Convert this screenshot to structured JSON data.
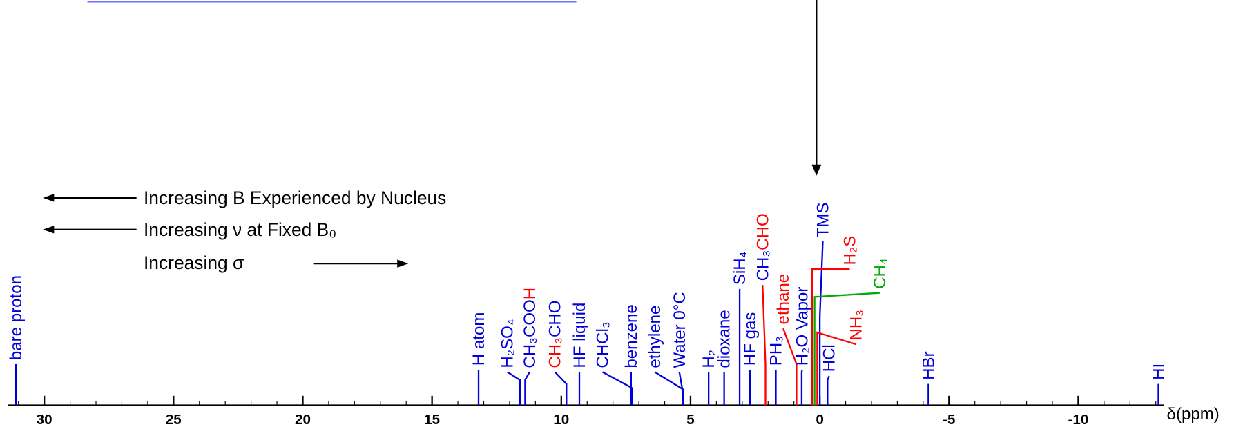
{
  "chart_data": {
    "type": "stem",
    "x_label": "δ(ppm)",
    "annotations": [
      "Increasing B Experienced by Nucleus",
      "Increasing ν at Fixed B₀",
      "Increasing σ"
    ],
    "xlim": [
      31.4,
      -13.3
    ],
    "xticks": [
      30,
      25,
      20,
      15,
      10,
      5,
      0,
      -5,
      -10
    ],
    "xminorticks": [
      31,
      30,
      29,
      28,
      27,
      26,
      25,
      24,
      23,
      22,
      21,
      20,
      19,
      18,
      17,
      16,
      15,
      14,
      13,
      12,
      11,
      10,
      9,
      8,
      7,
      6,
      5,
      4,
      3,
      2,
      1,
      0,
      -1,
      -2,
      -3,
      -4,
      -5,
      -6,
      -7,
      -8,
      -9,
      -10,
      -11,
      -12,
      -13
    ],
    "peaks": [
      {
        "x": 31.1,
        "color": "#0000dd",
        "parts": [
          {
            "text": "bare proton",
            "color": "#0000dd"
          }
        ]
      },
      {
        "x": 13.2,
        "color": "#0000dd",
        "parts": [
          {
            "text": "H atom",
            "color": "#0000dd"
          }
        ]
      },
      {
        "x": 11.6,
        "color": "#0000dd",
        "parts": [
          {
            "text": "H₂SO₄",
            "color": "#0000dd"
          }
        ]
      },
      {
        "x": 11.4,
        "color": "#0000dd",
        "parts": [
          {
            "text": "CH₃COO",
            "color": "#0000dd"
          },
          {
            "text": "H",
            "color": "#ff0000"
          }
        ]
      },
      {
        "x": 9.8,
        "color": "#0000dd",
        "parts": [
          {
            "text": "CH₃",
            "color": "#ff0000"
          },
          {
            "text": "CHO",
            "color": "#0000dd"
          }
        ]
      },
      {
        "x": 9.3,
        "color": "#0000dd",
        "parts": [
          {
            "text": "HF  liquid",
            "color": "#0000dd"
          }
        ]
      },
      {
        "x": 7.27,
        "color": "#0000dd",
        "parts": [
          {
            "text": "CHCl₃",
            "color": "#0000dd"
          }
        ]
      },
      {
        "x": 7.3,
        "color": "#0000dd",
        "parts": [
          {
            "text": "benzene",
            "color": "#0000dd"
          }
        ]
      },
      {
        "x": 5.28,
        "color": "#0000dd",
        "parts": [
          {
            "text": "ethylene",
            "color": "#0000dd"
          }
        ]
      },
      {
        "x": 5.3,
        "color": "#0000dd",
        "parts": [
          {
            "text": "Water 0°C",
            "color": "#0000dd"
          }
        ]
      },
      {
        "x": 4.3,
        "color": "#0000dd",
        "parts": [
          {
            "text": "H₂",
            "color": "#0000dd"
          }
        ]
      },
      {
        "x": 3.7,
        "color": "#0000dd",
        "parts": [
          {
            "text": "dioxane",
            "color": "#0000dd"
          }
        ]
      },
      {
        "x": 3.1,
        "color": "#0000dd",
        "parts": [
          {
            "text": "SiH₄",
            "color": "#0000dd"
          }
        ]
      },
      {
        "x": 2.7,
        "color": "#0000dd",
        "parts": [
          {
            "text": "HF gas",
            "color": "#0000dd"
          }
        ]
      },
      {
        "x": 2.1,
        "color": "#ff0000",
        "parts": [
          {
            "text": "CH₃",
            "color": "#0000dd"
          },
          {
            "text": "CHO",
            "color": "#ff0000"
          }
        ]
      },
      {
        "x": 1.7,
        "color": "#0000dd",
        "parts": [
          {
            "text": "PH₃",
            "color": "#0000dd"
          }
        ]
      },
      {
        "x": 0.9,
        "color": "#ff0000",
        "parts": [
          {
            "text": "ethane",
            "color": "#ff0000"
          }
        ]
      },
      {
        "x": 0.7,
        "color": "#0000dd",
        "parts": [
          {
            "text": "H₂O Vapor",
            "color": "#0000dd"
          }
        ]
      },
      {
        "x": 0,
        "color": "#0000dd",
        "parts": [
          {
            "text": "TMS",
            "color": "#0000dd"
          }
        ]
      },
      {
        "x": 0.3,
        "color": "#ff0000",
        "parts": [
          {
            "text": "H₂S",
            "color": "#ff0000"
          }
        ]
      },
      {
        "x": 0.2,
        "color": "#00aa00",
        "parts": [
          {
            "text": "CH₄",
            "color": "#00aa00"
          }
        ]
      },
      {
        "x": 0.1,
        "color": "#ff0000",
        "parts": [
          {
            "text": "NH₃",
            "color": "#ff0000"
          }
        ]
      },
      {
        "x": -0.3,
        "color": "#0000dd",
        "parts": [
          {
            "text": "HCl",
            "color": "#0000dd"
          }
        ]
      },
      {
        "x": -4.2,
        "color": "#0000dd",
        "parts": [
          {
            "text": "HBr",
            "color": "#0000dd"
          }
        ]
      },
      {
        "x": -13.1,
        "color": "#0000dd",
        "parts": [
          {
            "text": "HI",
            "color": "#0000dd"
          }
        ]
      }
    ]
  }
}
